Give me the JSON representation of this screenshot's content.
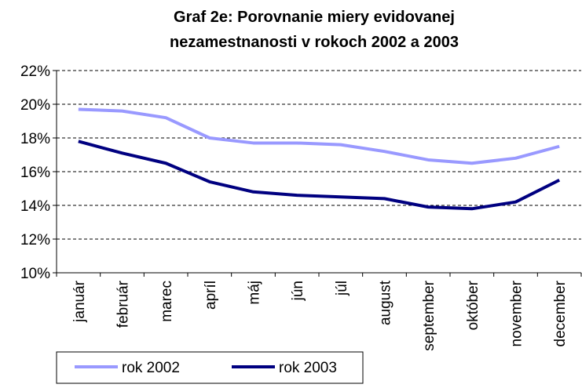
{
  "chart_data": {
    "type": "line",
    "title": [
      "Graf 2e: Porovnanie  miery evidovanej",
      "nezamestnanosti v rokoch 2002  a 2003"
    ],
    "categories": [
      "január",
      "február",
      "marec",
      "apríl",
      "máj",
      "jún",
      "júl",
      "august",
      "september",
      "október",
      "november",
      "december"
    ],
    "series": [
      {
        "name": "rok 2002",
        "color": "#9999ff",
        "values": [
          19.7,
          19.6,
          19.2,
          18.0,
          17.7,
          17.7,
          17.6,
          17.2,
          16.7,
          16.5,
          16.8,
          17.5
        ]
      },
      {
        "name": "rok 2003",
        "color": "#000080",
        "values": [
          17.8,
          17.1,
          16.5,
          15.4,
          14.8,
          14.6,
          14.5,
          14.4,
          13.9,
          13.8,
          14.2,
          15.5
        ]
      }
    ],
    "ylim": [
      10,
      22
    ],
    "yticks": [
      {
        "value": 10,
        "label": "10%"
      },
      {
        "value": 12,
        "label": "12%"
      },
      {
        "value": 14,
        "label": "14%"
      },
      {
        "value": 16,
        "label": "16%"
      },
      {
        "value": 18,
        "label": "18%"
      },
      {
        "value": 20,
        "label": "20%"
      },
      {
        "value": 22,
        "label": "22%"
      }
    ],
    "grid": true
  }
}
